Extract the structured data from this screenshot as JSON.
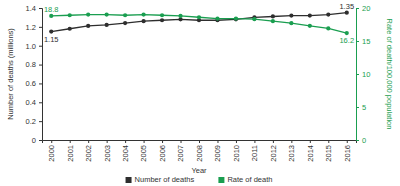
{
  "chart_data": {
    "type": "line",
    "categories": [
      "2000",
      "2001",
      "2002",
      "2003",
      "2004",
      "2005",
      "2006",
      "2007",
      "2008",
      "2009",
      "2010",
      "2011",
      "2012",
      "2013",
      "2014",
      "2015",
      "2016"
    ],
    "x_label": "Year",
    "y_label": "Number of deaths (millions)",
    "y2_label": "Rate of death/100,000 population",
    "ylim": [
      0,
      1.4
    ],
    "yticks": [
      0,
      0.2,
      0.4,
      0.6,
      0.8,
      {
        "value": 1,
        "label": "1.0"
      },
      1.2,
      1.4
    ],
    "y2lim": [
      0,
      20
    ],
    "y2ticks": [
      0,
      5,
      10,
      15,
      20
    ],
    "grid": false,
    "legend": "bottom",
    "data_labels": true,
    "series": [
      {
        "name": "Number of deaths",
        "color": "#2e2e2e",
        "marker": "circle",
        "values": [
          1.15,
          1.18,
          1.21,
          1.22,
          1.24,
          1.26,
          1.27,
          1.28,
          1.27,
          1.27,
          1.28,
          1.3,
          1.31,
          1.32,
          1.32,
          1.33,
          1.35
        ],
        "value_labels": [
          "1.15",
          null,
          null,
          null,
          null,
          null,
          null,
          null,
          null,
          null,
          null,
          null,
          null,
          null,
          null,
          null,
          "1.35"
        ]
      },
      {
        "name": "Rate of death",
        "color": "#1a9e50",
        "marker": "circle",
        "axis": "y2",
        "values": [
          18.8,
          18.9,
          19.0,
          19.0,
          18.9,
          19.0,
          18.9,
          18.8,
          18.6,
          18.4,
          18.4,
          18.3,
          18.0,
          17.7,
          17.3,
          16.9,
          16.2
        ],
        "value_labels": [
          "18.8",
          null,
          null,
          null,
          null,
          null,
          null,
          null,
          null,
          null,
          null,
          null,
          null,
          null,
          null,
          null,
          "16.2"
        ]
      }
    ]
  }
}
